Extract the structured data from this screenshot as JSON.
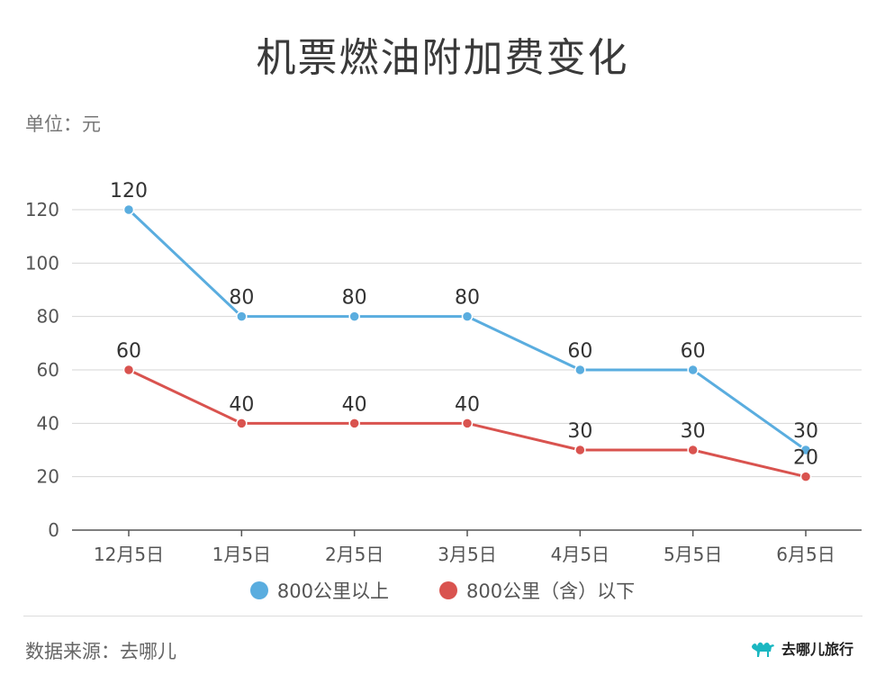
{
  "title": "机票燃油附加费变化",
  "unit_label": "单位：元",
  "source": "数据来源：去哪儿",
  "brand": {
    "name": "去哪儿旅行",
    "icon": "camel-icon",
    "color": "#1ab7c1"
  },
  "colors": {
    "series_above": "#5aaddf",
    "series_below": "#d9534f"
  },
  "chart_data": {
    "type": "line",
    "title": "机票燃油附加费变化",
    "x": [
      "12月5日",
      "1月5日",
      "2月5日",
      "3月5日",
      "4月5日",
      "5月5日",
      "6月5日"
    ],
    "ylim": [
      0,
      120
    ],
    "yticks": [
      0,
      20,
      40,
      60,
      80,
      100,
      120
    ],
    "grid": true,
    "legend_position": "bottom",
    "series": [
      {
        "name": "800公里以上",
        "values": [
          120,
          80,
          80,
          80,
          60,
          60,
          30
        ],
        "color": "#5aaddf"
      },
      {
        "name": "800公里（含）以下",
        "values": [
          60,
          40,
          40,
          40,
          30,
          30,
          20
        ],
        "color": "#d9534f"
      }
    ]
  }
}
